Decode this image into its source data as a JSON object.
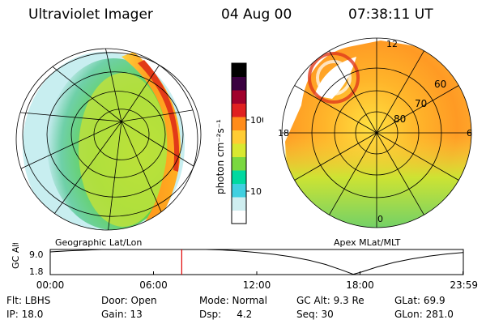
{
  "header": {
    "instrument": "Ultraviolet Imager",
    "date": "04 Aug 00",
    "time": "07:38:11 UT"
  },
  "left_panel": {
    "label": "Geographic Lat/Lon"
  },
  "right_panel": {
    "label": "Apex MLat/MLT",
    "mlt_labels": [
      "12",
      "18",
      "6",
      "0"
    ],
    "lat_labels": [
      "60",
      "70",
      "80"
    ]
  },
  "colorbar": {
    "label": "photon cm⁻²s⁻¹",
    "ticks": [
      "100",
      "10"
    ],
    "scale": "log",
    "colors": [
      "#ffffff",
      "#cfeef0",
      "#40d0e0",
      "#00d9a0",
      "#7ad840",
      "#d8e830",
      "#ffcc33",
      "#ff8c1a",
      "#e02020",
      "#a0002c",
      "#3a0040",
      "#000000"
    ]
  },
  "chart_data": {
    "type": "line",
    "title": "",
    "ylabel": "GC Alt",
    "y_ticks": [
      "9.0",
      "1.8"
    ],
    "ylim": [
      1.8,
      9.0
    ],
    "x_ticks": [
      "00:00",
      "06:00",
      "12:00",
      "18:00",
      "23:59"
    ],
    "x_hours": [
      0,
      1,
      2,
      3,
      4,
      5,
      6,
      7,
      8,
      9,
      10,
      11,
      12,
      13,
      14,
      15,
      16,
      17,
      17.6,
      18,
      19,
      20,
      21,
      22,
      23,
      23.98
    ],
    "y_values": [
      8.3,
      8.6,
      8.8,
      9.0,
      9.2,
      9.3,
      9.3,
      9.3,
      9.2,
      9.05,
      8.85,
      8.55,
      8.15,
      7.6,
      6.9,
      5.95,
      4.7,
      3.0,
      1.9,
      2.4,
      4.0,
      5.3,
      6.3,
      7.1,
      7.7,
      8.15
    ],
    "current_hour": 7.64,
    "current_color": "#e00000"
  },
  "info": {
    "filter": "Flt: LBHS",
    "door": "Door: Open",
    "mode": "Mode: Normal",
    "gc_alt": "GC Alt: 9.3 Re",
    "glat": "GLat:  69.9",
    "ip": "IP: 18.0",
    "gain": "Gain: 13",
    "dsp": "Dsp:     4.2",
    "seq": "Seq: 30",
    "glon": "GLon: 281.0"
  }
}
